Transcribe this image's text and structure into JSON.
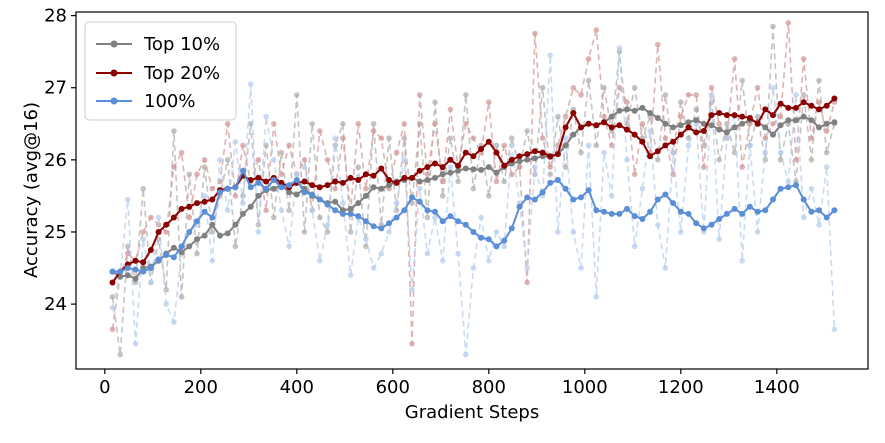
{
  "chart_data": {
    "type": "line",
    "xlabel": "Gradient Steps",
    "ylabel": "Accuracy (avg@16)",
    "xlim": [
      -60,
      1590
    ],
    "ylim": [
      23.1,
      28.05
    ],
    "xticks": [
      0,
      200,
      400,
      600,
      800,
      1000,
      1200,
      1400
    ],
    "yticks": [
      24,
      25,
      26,
      27,
      28
    ],
    "grid": false,
    "legend_position": "top-left",
    "x": [
      16,
      32,
      48,
      64,
      80,
      96,
      112,
      128,
      144,
      160,
      176,
      192,
      208,
      224,
      240,
      256,
      272,
      288,
      304,
      320,
      336,
      352,
      368,
      384,
      400,
      416,
      432,
      448,
      464,
      480,
      496,
      512,
      528,
      544,
      560,
      576,
      592,
      608,
      624,
      640,
      656,
      672,
      688,
      704,
      720,
      736,
      752,
      768,
      784,
      800,
      816,
      832,
      848,
      864,
      880,
      896,
      912,
      928,
      944,
      960,
      976,
      992,
      1008,
      1024,
      1040,
      1056,
      1072,
      1088,
      1104,
      1120,
      1136,
      1152,
      1168,
      1184,
      1200,
      1216,
      1232,
      1248,
      1264,
      1280,
      1296,
      1312,
      1328,
      1344,
      1360,
      1376,
      1392,
      1408,
      1424,
      1440,
      1456,
      1472,
      1488,
      1504,
      1520
    ],
    "series": [
      {
        "name": "Top 10%",
        "color": "#808080",
        "raw_color": "#b0b0b0",
        "smoothed": [
          24.45,
          24.38,
          24.4,
          24.35,
          24.5,
          24.52,
          24.6,
          24.7,
          24.78,
          24.72,
          24.8,
          24.9,
          24.95,
          25.1,
          24.95,
          24.98,
          25.1,
          25.25,
          25.35,
          25.5,
          25.58,
          25.6,
          25.65,
          25.55,
          25.52,
          25.6,
          25.5,
          25.45,
          25.4,
          25.42,
          25.3,
          25.32,
          25.4,
          25.5,
          25.62,
          25.6,
          25.65,
          25.7,
          25.72,
          25.75,
          25.7,
          25.72,
          25.75,
          25.8,
          25.82,
          25.85,
          25.88,
          25.87,
          25.86,
          25.9,
          25.82,
          25.9,
          25.95,
          25.98,
          26.0,
          26.02,
          26.05,
          26.04,
          26.08,
          26.2,
          26.35,
          26.45,
          26.5,
          26.48,
          26.52,
          26.6,
          26.68,
          26.7,
          26.68,
          26.72,
          26.65,
          26.58,
          26.5,
          26.45,
          26.48,
          26.52,
          26.55,
          26.5,
          26.48,
          26.42,
          26.38,
          26.45,
          26.5,
          26.55,
          26.52,
          26.45,
          26.35,
          26.48,
          26.55,
          26.55,
          26.6,
          26.55,
          26.45,
          26.5,
          26.52
        ],
        "raw": [
          24.1,
          23.3,
          24.8,
          24.3,
          25.6,
          24.3,
          24.9,
          24.2,
          26.4,
          24.1,
          25.8,
          24.7,
          25.9,
          25.0,
          25.5,
          26.0,
          24.8,
          25.5,
          26.5,
          25.1,
          26.2,
          25.2,
          26.1,
          25.3,
          26.9,
          25.0,
          26.5,
          25.2,
          25.0,
          26.2,
          26.5,
          25.0,
          25.9,
          24.8,
          26.5,
          25.1,
          26.3,
          25.3,
          26.3,
          25.4,
          26.5,
          25.2,
          26.8,
          25.5,
          26.3,
          25.7,
          26.9,
          25.6,
          26.2,
          25.5,
          26.2,
          25.7,
          26.3,
          25.9,
          26.4,
          25.8,
          27.0,
          25.8,
          26.6,
          25.9,
          26.7,
          26.1,
          27.1,
          26.2,
          27.0,
          26.4,
          27.5,
          26.5,
          27.0,
          26.3,
          26.6,
          26.0,
          26.9,
          26.1,
          26.8,
          26.3,
          26.7,
          26.2,
          26.8,
          26.0,
          26.5,
          26.1,
          27.1,
          26.2,
          26.6,
          26.0,
          27.85,
          26.0,
          26.5,
          25.7,
          26.9,
          26.0,
          27.1,
          26.1,
          26.5
        ]
      },
      {
        "name": "Top 20%",
        "color": "#8b0000",
        "raw_color": "#d49a9a",
        "smoothed": [
          24.3,
          24.45,
          24.55,
          24.6,
          24.58,
          24.75,
          25.0,
          25.1,
          25.2,
          25.32,
          25.35,
          25.4,
          25.42,
          25.45,
          25.58,
          25.6,
          25.62,
          25.78,
          25.72,
          25.75,
          25.7,
          25.75,
          25.68,
          25.62,
          25.68,
          25.7,
          25.65,
          25.62,
          25.65,
          25.7,
          25.68,
          25.75,
          25.72,
          25.8,
          25.78,
          25.88,
          25.72,
          25.68,
          25.75,
          25.75,
          25.85,
          25.9,
          25.95,
          25.9,
          26.0,
          25.92,
          26.1,
          26.05,
          26.15,
          26.25,
          26.1,
          25.92,
          26.0,
          26.05,
          26.08,
          26.12,
          26.1,
          26.05,
          26.08,
          26.45,
          26.65,
          26.45,
          26.5,
          26.48,
          26.52,
          26.45,
          26.48,
          26.42,
          26.35,
          26.25,
          26.05,
          26.12,
          26.2,
          26.25,
          26.35,
          26.45,
          26.38,
          26.4,
          26.62,
          26.65,
          26.62,
          26.62,
          26.6,
          26.58,
          26.5,
          26.7,
          26.62,
          26.78,
          26.72,
          26.72,
          26.8,
          26.75,
          26.7,
          26.75,
          26.85
        ],
        "raw": [
          23.65,
          24.4,
          24.7,
          24.6,
          25.0,
          25.2,
          25.1,
          25.0,
          25.9,
          26.1,
          25.2,
          25.8,
          26.0,
          25.6,
          25.7,
          26.5,
          25.5,
          26.2,
          25.7,
          26.0,
          25.3,
          26.5,
          25.8,
          26.2,
          25.8,
          26.0,
          25.3,
          26.4,
          26.0,
          25.6,
          26.3,
          25.3,
          26.5,
          25.6,
          26.4,
          26.3,
          25.6,
          26.1,
          26.5,
          23.45,
          26.9,
          25.8,
          26.5,
          25.7,
          26.7,
          25.9,
          26.5,
          26.3,
          26.1,
          26.8,
          25.7,
          26.2,
          25.8,
          25.9,
          24.3,
          27.75,
          26.3,
          25.9,
          26.2,
          26.6,
          27.0,
          26.9,
          27.4,
          27.8,
          26.6,
          26.2,
          27.0,
          26.8,
          25.8,
          26.5,
          26.1,
          27.6,
          26.3,
          25.8,
          26.6,
          26.9,
          26.9,
          25.9,
          27.0,
          26.5,
          26.3,
          27.4,
          25.9,
          26.5,
          27.0,
          26.3,
          26.5,
          26.6,
          27.9,
          26.0,
          27.4,
          26.3,
          26.8,
          26.4,
          26.8
        ]
      },
      {
        "name": "100%",
        "color": "#5b8ed6",
        "raw_color": "#b7cdee",
        "smoothed": [
          24.45,
          24.45,
          24.5,
          24.48,
          24.45,
          24.5,
          24.62,
          24.68,
          24.65,
          24.8,
          25.0,
          25.15,
          25.28,
          25.2,
          25.55,
          25.6,
          25.62,
          25.85,
          25.62,
          25.68,
          25.6,
          25.72,
          25.62,
          25.65,
          25.72,
          25.55,
          25.52,
          25.45,
          25.38,
          25.3,
          25.25,
          25.25,
          25.22,
          25.15,
          25.08,
          25.05,
          25.12,
          25.2,
          25.3,
          25.48,
          25.42,
          25.3,
          25.28,
          25.15,
          25.22,
          25.15,
          25.1,
          25.0,
          24.92,
          24.9,
          24.8,
          24.88,
          25.05,
          25.35,
          25.48,
          25.45,
          25.55,
          25.68,
          25.72,
          25.6,
          25.45,
          25.48,
          25.58,
          25.3,
          25.28,
          25.25,
          25.25,
          25.32,
          25.22,
          25.18,
          25.28,
          25.45,
          25.52,
          25.4,
          25.28,
          25.25,
          25.12,
          25.05,
          25.1,
          25.18,
          25.25,
          25.32,
          25.25,
          25.35,
          25.28,
          25.3,
          25.45,
          25.6,
          25.62,
          25.65,
          25.45,
          25.28,
          25.3,
          25.2,
          25.3
        ],
        "raw": [
          23.95,
          24.4,
          25.45,
          23.45,
          24.9,
          24.3,
          25.2,
          24.0,
          23.75,
          24.7,
          25.0,
          25.1,
          25.5,
          24.6,
          26.0,
          25.3,
          26.25,
          25.4,
          27.05,
          25.0,
          26.6,
          26.0,
          25.3,
          24.8,
          25.8,
          25.9,
          25.3,
          24.6,
          25.1,
          26.3,
          25.4,
          24.4,
          25.2,
          24.9,
          24.5,
          24.7,
          25.0,
          25.4,
          26.0,
          24.2,
          25.6,
          24.7,
          25.2,
          24.6,
          25.9,
          24.7,
          23.3,
          24.5,
          25.2,
          24.6,
          25.0,
          24.8,
          26.2,
          25.4,
          24.5,
          25.9,
          25.5,
          27.45,
          25.0,
          26.3,
          25.0,
          24.5,
          26.2,
          24.1,
          26.1,
          25.5,
          27.55,
          26.0,
          24.8,
          25.6,
          26.4,
          25.1,
          24.5,
          26.1,
          25.0,
          26.2,
          26.5,
          25.0,
          26.9,
          24.9,
          26.3,
          26.6,
          24.6,
          26.2,
          25.0,
          26.1,
          27.0,
          26.1,
          25.7,
          26.9,
          25.2,
          25.6,
          25.1,
          25.9,
          23.65
        ]
      }
    ]
  }
}
